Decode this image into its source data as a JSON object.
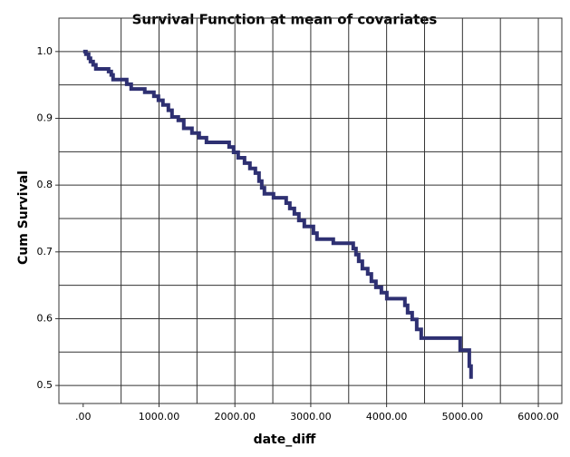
{
  "chart_data": {
    "type": "step",
    "title": "Survival Function at mean of covariates",
    "x_label": "date_diff",
    "y_label": "Cum Survival",
    "x": [
      0,
      36,
      72,
      96,
      131,
      167,
      335,
      370,
      394,
      574,
      633,
      812,
      932,
      992,
      1051,
      1123,
      1171,
      1254,
      1326,
      1434,
      1529,
      1625,
      1924,
      1983,
      2043,
      2127,
      2198,
      2270,
      2318,
      2354,
      2389,
      2509,
      2676,
      2724,
      2784,
      2843,
      2915,
      3035,
      3082,
      3297,
      3560,
      3596,
      3632,
      3680,
      3751,
      3799,
      3859,
      3931,
      4003,
      4241,
      4277,
      4337,
      4397,
      4456,
      4970,
      5090,
      5113
    ],
    "series": [
      {
        "color": "#2e3072",
        "values": [
          1.0,
          0.996,
          0.99,
          0.985,
          0.98,
          0.974,
          0.97,
          0.965,
          0.958,
          0.951,
          0.944,
          0.939,
          0.933,
          0.927,
          0.92,
          0.912,
          0.902,
          0.897,
          0.885,
          0.878,
          0.871,
          0.864,
          0.857,
          0.849,
          0.841,
          0.833,
          0.825,
          0.818,
          0.806,
          0.796,
          0.787,
          0.781,
          0.773,
          0.765,
          0.757,
          0.747,
          0.738,
          0.728,
          0.719,
          0.713,
          0.705,
          0.696,
          0.686,
          0.675,
          0.667,
          0.656,
          0.647,
          0.639,
          0.63,
          0.62,
          0.609,
          0.599,
          0.584,
          0.571,
          0.553,
          0.529,
          0.51
        ]
      }
    ],
    "xlim": [
      -320,
      6310
    ],
    "ylim": [
      0.473,
      1.05
    ],
    "xticks": [
      {
        "value": 0,
        "label": ".00"
      },
      {
        "value": 1000,
        "label": "1000.00"
      },
      {
        "value": 2000,
        "label": "2000.00"
      },
      {
        "value": 3000,
        "label": "3000.00"
      },
      {
        "value": 4000,
        "label": "4000.00"
      },
      {
        "value": 5000,
        "label": "5000.00"
      },
      {
        "value": 6000,
        "label": "6000.00"
      }
    ],
    "yticks": [
      0.5,
      0.6,
      0.7,
      0.8,
      0.9,
      {
        "value": 1,
        "label": "1.0"
      }
    ],
    "x_gridlines": [
      500,
      1000,
      1500,
      2000,
      2500,
      3000,
      3500,
      4000,
      4500,
      5000,
      5500,
      6000
    ],
    "y_gridlines": [
      0.5,
      0.55,
      0.6,
      0.65,
      0.7,
      0.75,
      0.8,
      0.85,
      0.9,
      0.95,
      1.0
    ],
    "grid": true
  }
}
